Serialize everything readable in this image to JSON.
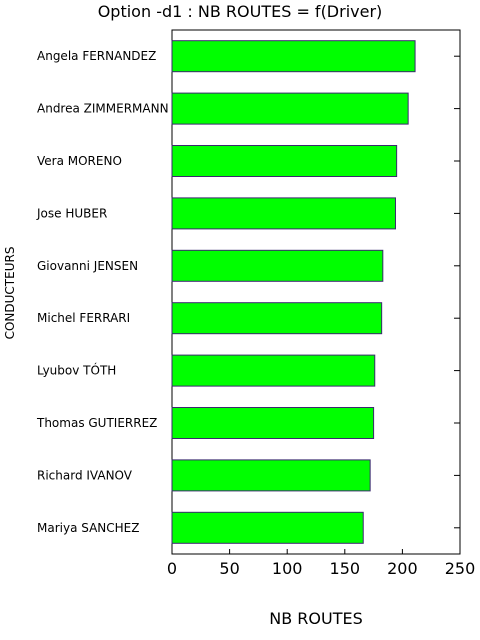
{
  "chart_data": {
    "type": "bar",
    "orientation": "horizontal",
    "title": "Option -d1 : NB ROUTES = f(Driver)",
    "xlabel": "NB ROUTES",
    "ylabel": "CONDUCTEURS",
    "categories": [
      "Angela FERNANDEZ",
      "Andrea ZIMMERMANN",
      "Vera MORENO",
      "Jose HUBER",
      "Giovanni JENSEN",
      "Michel FERRARI",
      "Lyubov TÓTH",
      "Thomas GUTIERREZ",
      "Richard IVANOV",
      "Mariya SANCHEZ"
    ],
    "values": [
      211,
      205,
      195,
      194,
      183,
      182,
      176,
      175,
      172,
      166
    ],
    "xlim": [
      0,
      250
    ],
    "xticks": [
      "0",
      "50",
      "100",
      "150",
      "200",
      "250"
    ],
    "grid": false,
    "bar_color": "#00ff00",
    "bar_edge_color": "#3a2a6e"
  }
}
